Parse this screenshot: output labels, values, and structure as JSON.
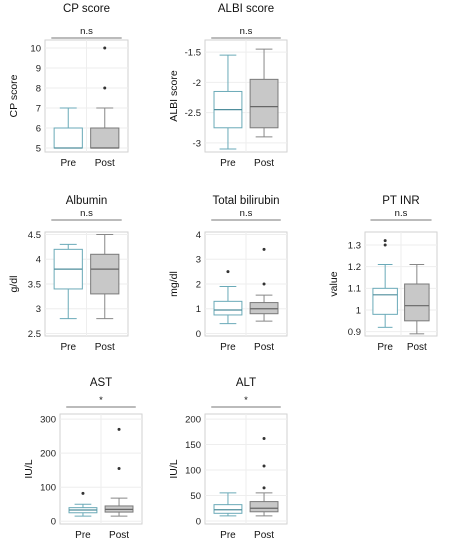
{
  "chart_data": [
    {
      "type": "box",
      "title": "CP score",
      "ylabel": "CP score",
      "ylim": [
        4.8,
        10.4
      ],
      "yticks": [
        5,
        6,
        7,
        8,
        9,
        10
      ],
      "significance": "n.s",
      "categories": [
        "Pre",
        "Post"
      ],
      "boxes": [
        {
          "category": "Pre",
          "min": 5,
          "q1": 5,
          "median": 5,
          "q3": 6,
          "max": 7,
          "outliers": [],
          "fill": "#ffffff"
        },
        {
          "category": "Post",
          "min": 5,
          "q1": 5,
          "median": 5,
          "q3": 6,
          "max": 7,
          "outliers": [
            8,
            10
          ],
          "fill": "#c8c8c8"
        }
      ]
    },
    {
      "type": "box",
      "title": "ALBI score",
      "ylabel": "ALBI score",
      "ylim": [
        -3.15,
        -1.3
      ],
      "yticks": [
        -1.5,
        -2,
        -2.5,
        -3
      ],
      "significance": "n.s",
      "categories": [
        "Pre",
        "Post"
      ],
      "boxes": [
        {
          "category": "Pre",
          "min": -3.1,
          "q1": -2.75,
          "median": -2.45,
          "q3": -2.15,
          "max": -1.55,
          "outliers": [],
          "fill": "#ffffff"
        },
        {
          "category": "Post",
          "min": -2.9,
          "q1": -2.75,
          "median": -2.4,
          "q3": -1.95,
          "max": -1.45,
          "outliers": [],
          "fill": "#c8c8c8"
        }
      ]
    },
    {
      "type": "box",
      "title": "Albumin",
      "ylabel": "g/dl",
      "ylim": [
        2.45,
        4.55
      ],
      "yticks": [
        2.5,
        3,
        3.5,
        4,
        4.5
      ],
      "significance": "n.s",
      "categories": [
        "Pre",
        "Post"
      ],
      "boxes": [
        {
          "category": "Pre",
          "min": 2.8,
          "q1": 3.4,
          "median": 3.8,
          "q3": 4.2,
          "max": 4.3,
          "outliers": [],
          "fill": "#ffffff"
        },
        {
          "category": "Post",
          "min": 2.8,
          "q1": 3.3,
          "median": 3.8,
          "q3": 4.1,
          "max": 4.5,
          "outliers": [],
          "fill": "#c8c8c8"
        }
      ]
    },
    {
      "type": "box",
      "title": "Total bilirubin",
      "ylabel": "mg/dl",
      "ylim": [
        -0.1,
        4.1
      ],
      "yticks": [
        0,
        1,
        2,
        3,
        4
      ],
      "significance": "n.s",
      "categories": [
        "Pre",
        "Post"
      ],
      "boxes": [
        {
          "category": "Pre",
          "min": 0.4,
          "q1": 0.75,
          "median": 0.95,
          "q3": 1.3,
          "max": 1.9,
          "outliers": [
            2.5
          ],
          "fill": "#ffffff"
        },
        {
          "category": "Post",
          "min": 0.5,
          "q1": 0.8,
          "median": 1.0,
          "q3": 1.25,
          "max": 1.55,
          "outliers": [
            2.0,
            3.4
          ],
          "fill": "#c8c8c8"
        }
      ]
    },
    {
      "type": "box",
      "title": "PT INR",
      "ylabel": "value",
      "ylim": [
        0.88,
        1.36
      ],
      "yticks": [
        0.9,
        1,
        1.1,
        1.2,
        1.3
      ],
      "significance": "n.s",
      "categories": [
        "Pre",
        "Post"
      ],
      "boxes": [
        {
          "category": "Pre",
          "min": 0.92,
          "q1": 0.98,
          "median": 1.07,
          "q3": 1.1,
          "max": 1.21,
          "outliers": [
            1.3,
            1.32
          ],
          "fill": "#ffffff"
        },
        {
          "category": "Post",
          "min": 0.89,
          "q1": 0.95,
          "median": 1.02,
          "q3": 1.12,
          "max": 1.21,
          "outliers": [],
          "fill": "#c8c8c8"
        }
      ]
    },
    {
      "type": "box",
      "title": "AST",
      "ylabel": "IU/L",
      "ylim": [
        -8,
        315
      ],
      "yticks": [
        0,
        100,
        200,
        300
      ],
      "significance": "*",
      "categories": [
        "Pre",
        "Post"
      ],
      "boxes": [
        {
          "category": "Pre",
          "min": 15,
          "q1": 25,
          "median": 33,
          "q3": 40,
          "max": 50,
          "outliers": [
            82
          ],
          "fill": "#ffffff"
        },
        {
          "category": "Post",
          "min": 15,
          "q1": 27,
          "median": 35,
          "q3": 45,
          "max": 68,
          "outliers": [
            155,
            270
          ],
          "fill": "#c8c8c8"
        }
      ]
    },
    {
      "type": "box",
      "title": "ALT",
      "ylabel": "IU/L",
      "ylim": [
        -6,
        210
      ],
      "yticks": [
        0,
        50,
        100,
        150,
        200
      ],
      "significance": "*",
      "categories": [
        "Pre",
        "Post"
      ],
      "boxes": [
        {
          "category": "Pre",
          "min": 10,
          "q1": 15,
          "median": 22,
          "q3": 32,
          "max": 55,
          "outliers": [],
          "fill": "#ffffff"
        },
        {
          "category": "Post",
          "min": 10,
          "q1": 18,
          "median": 25,
          "q3": 38,
          "max": 55,
          "outliers": [
            65,
            108,
            162
          ],
          "fill": "#c8c8c8"
        }
      ]
    }
  ]
}
